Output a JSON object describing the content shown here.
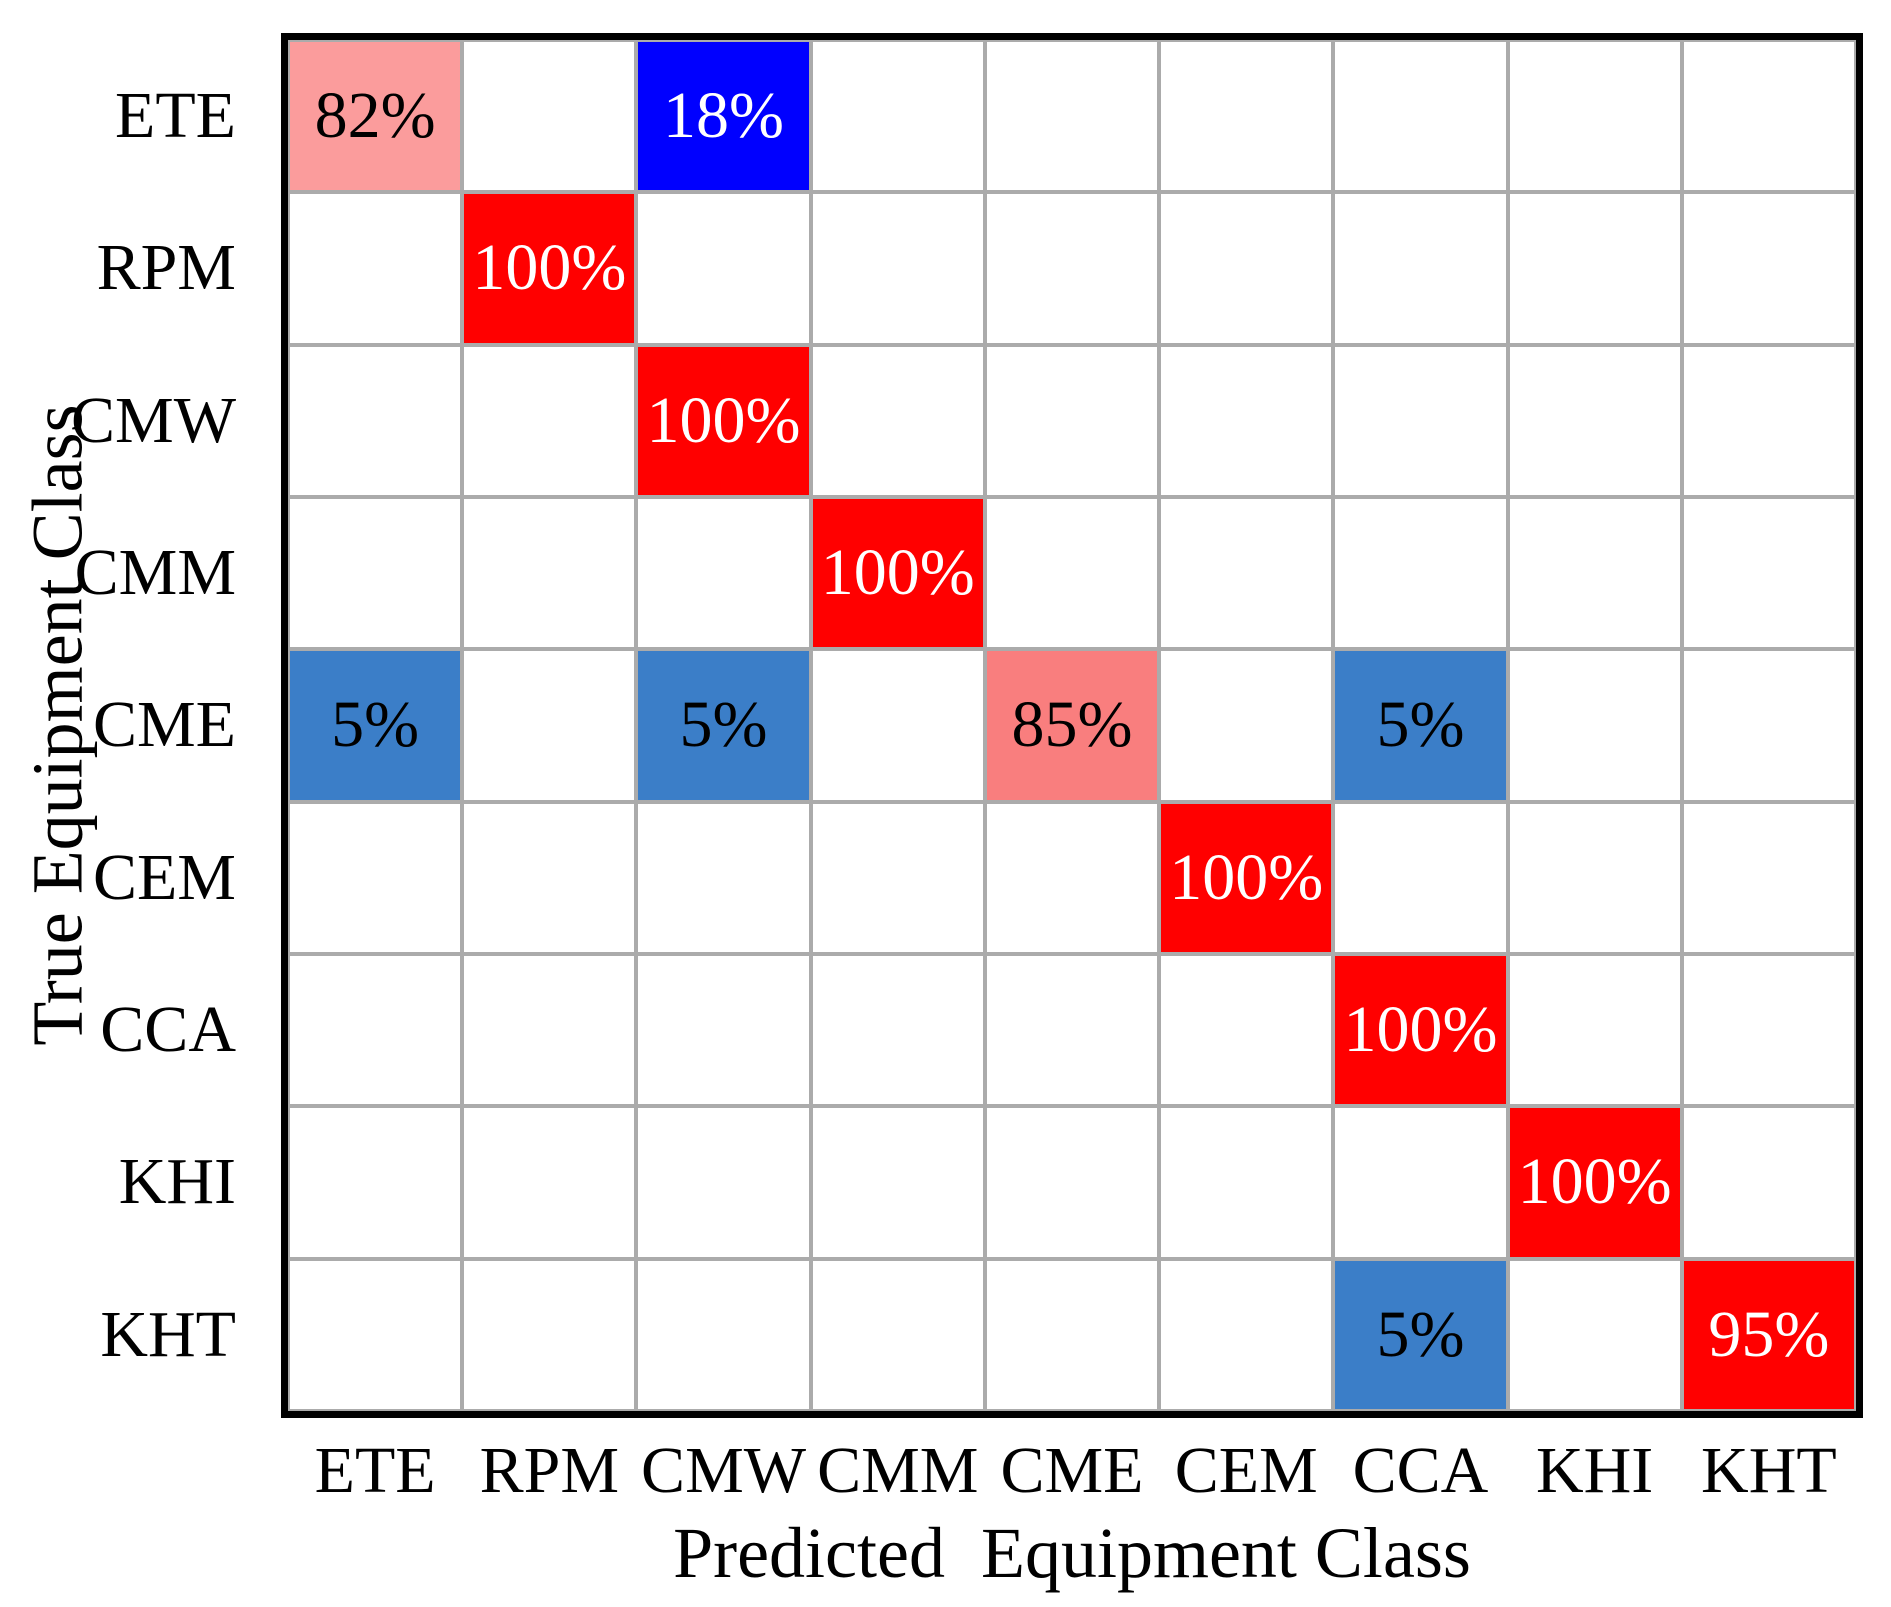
{
  "figure": {
    "background": "#FFFFFF",
    "kind": "confusion-matrix"
  },
  "chart_data": {
    "type": "heatmap",
    "title": "",
    "xlabel": "Predicted  Equipment Class",
    "ylabel": "True Equipment Class",
    "x_categories": [
      "ETE",
      "RPM",
      "CMW",
      "CMM",
      "CME",
      "CEM",
      "CCA",
      "KHI",
      "KHT"
    ],
    "y_categories": [
      "ETE",
      "RPM",
      "CMW",
      "CMM",
      "CME",
      "CEM",
      "CCA",
      "KHI",
      "KHT"
    ],
    "cells": [
      {
        "row": "ETE",
        "col": "ETE",
        "value": "82%",
        "bg": "#FB9C9C",
        "text_color": "#000000"
      },
      {
        "row": "ETE",
        "col": "CMW",
        "value": "18%",
        "bg": "#0000FF",
        "text_color": "#FFFFFF"
      },
      {
        "row": "RPM",
        "col": "RPM",
        "value": "100%",
        "bg": "#FF0000",
        "text_color": "#FFFFFF"
      },
      {
        "row": "CMW",
        "col": "CMW",
        "value": "100%",
        "bg": "#FF0000",
        "text_color": "#FFFFFF"
      },
      {
        "row": "CMM",
        "col": "CMM",
        "value": "100%",
        "bg": "#FF0000",
        "text_color": "#FFFFFF"
      },
      {
        "row": "CME",
        "col": "ETE",
        "value": "5%",
        "bg": "#3B7EC8",
        "text_color": "#000000"
      },
      {
        "row": "CME",
        "col": "CMW",
        "value": "5%",
        "bg": "#3B7EC8",
        "text_color": "#000000"
      },
      {
        "row": "CME",
        "col": "CME",
        "value": "85%",
        "bg": "#F97E7E",
        "text_color": "#000000"
      },
      {
        "row": "CME",
        "col": "CCA",
        "value": "5%",
        "bg": "#3B7EC8",
        "text_color": "#000000"
      },
      {
        "row": "CEM",
        "col": "CEM",
        "value": "100%",
        "bg": "#FF0000",
        "text_color": "#FFFFFF"
      },
      {
        "row": "CCA",
        "col": "CCA",
        "value": "100%",
        "bg": "#FF0000",
        "text_color": "#FFFFFF"
      },
      {
        "row": "KHI",
        "col": "KHI",
        "value": "100%",
        "bg": "#FF0000",
        "text_color": "#FFFFFF"
      },
      {
        "row": "KHT",
        "col": "CCA",
        "value": "5%",
        "bg": "#3B7EC8",
        "text_color": "#000000"
      },
      {
        "row": "KHT",
        "col": "KHT",
        "value": "95%",
        "bg": "#FF0000",
        "text_color": "#FFFFFF"
      }
    ],
    "empty_cell_color": "#FFFFFF",
    "grid_line_color": "#ABABAB",
    "border_color": "#000000",
    "grid": "on",
    "legend_position": "none"
  }
}
